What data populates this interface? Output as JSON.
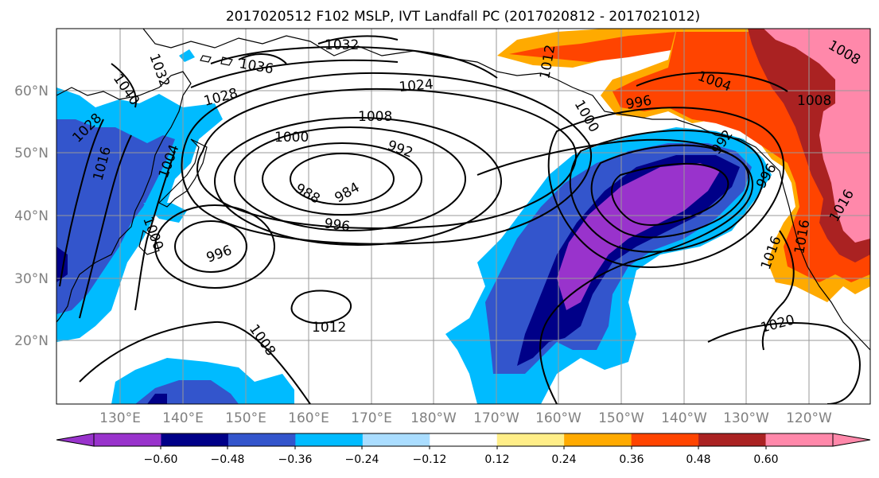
{
  "title": "2017020512 F102 MSLP, IVT Landfall PC (2017020812 - 2017021012)",
  "lat_labels": [
    "60°N",
    "50°N",
    "40°N",
    "30°N",
    "20°N"
  ],
  "lon_labels": [
    "130°E",
    "140°E",
    "150°E",
    "160°E",
    "170°E",
    "180°W",
    "170°W",
    "160°W",
    "150°W",
    "140°W",
    "130°W",
    "120°W"
  ],
  "contour_labels": [
    {
      "text": "1032"
    },
    {
      "text": "1036"
    },
    {
      "text": "1040"
    },
    {
      "text": "1032"
    },
    {
      "text": "1028"
    },
    {
      "text": "1024"
    },
    {
      "text": "1008"
    },
    {
      "text": "1000"
    },
    {
      "text": "992"
    },
    {
      "text": "988"
    },
    {
      "text": "984"
    },
    {
      "text": "996"
    },
    {
      "text": "996"
    },
    {
      "text": "1012"
    },
    {
      "text": "1008"
    },
    {
      "text": "1020"
    },
    {
      "text": "1016"
    },
    {
      "text": "1016"
    },
    {
      "text": "1004"
    },
    {
      "text": "996"
    },
    {
      "text": "1008"
    },
    {
      "text": "1000"
    },
    {
      "text": "992"
    },
    {
      "text": "996"
    },
    {
      "text": "1028"
    },
    {
      "text": "1016"
    },
    {
      "text": "1004"
    },
    {
      "text": "1000"
    },
    {
      "text": "1008"
    },
    {
      "text": "1012"
    },
    {
      "text": "1016"
    }
  ],
  "colorbar": {
    "ticks": [
      "−0.60",
      "−0.48",
      "−0.36",
      "−0.24",
      "−0.12",
      "0.12",
      "0.24",
      "0.36",
      "0.48",
      "0.60"
    ],
    "colors": [
      "#9933cc",
      "#000088",
      "#3355cc",
      "#00bbff",
      "#aaddff",
      "#ffffff",
      "#ffee88",
      "#ffaa00",
      "#ff4400",
      "#aa2222",
      "#ff88aa"
    ]
  }
}
